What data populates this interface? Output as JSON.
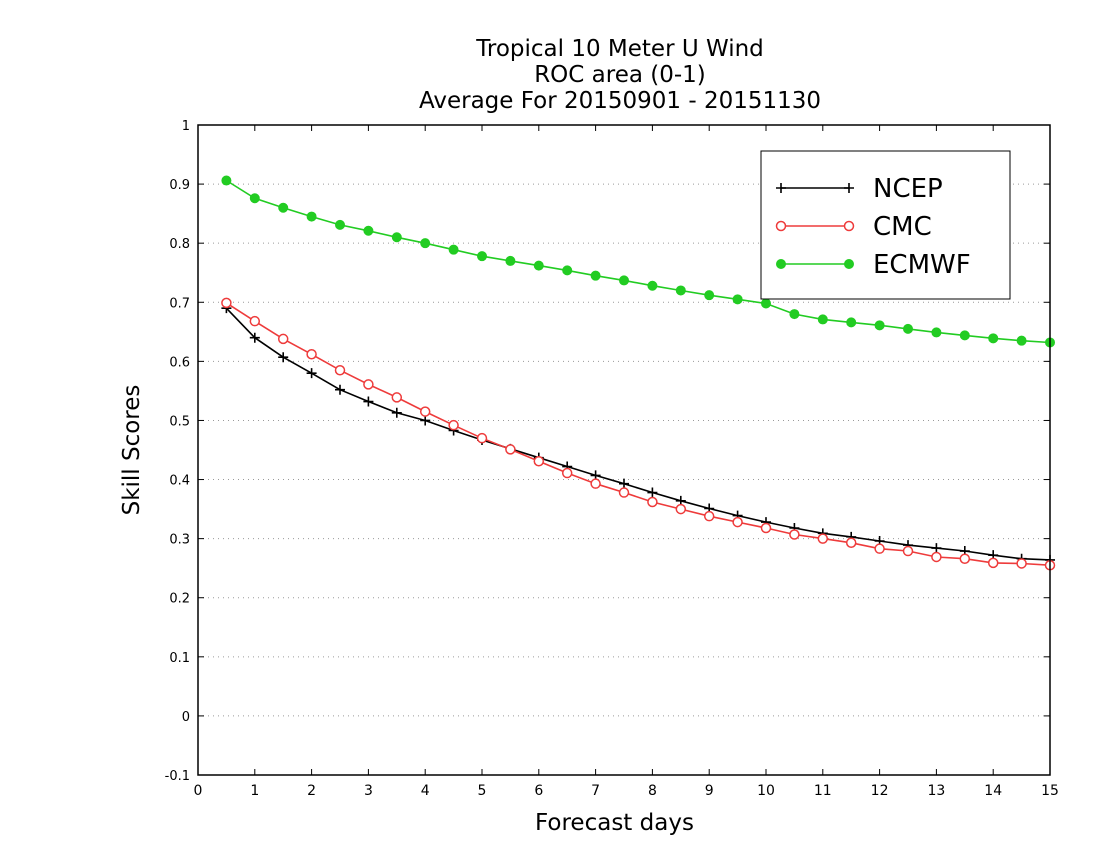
{
  "chart_data": {
    "type": "line",
    "title": [
      "Tropical 10 Meter U Wind",
      "ROC area (0-1)",
      "Average For 20150901 - 20151130"
    ],
    "xlabel": "Forecast days",
    "ylabel": "Skill Scores",
    "xlim": [
      0,
      15
    ],
    "ylim": [
      -0.1,
      1
    ],
    "xticks": [
      0,
      1,
      2,
      3,
      4,
      5,
      6,
      7,
      8,
      9,
      10,
      11,
      12,
      13,
      14,
      15
    ],
    "xtick_labels": [
      "0",
      "1",
      "2",
      "3",
      "4",
      "5",
      "6",
      "7",
      "8",
      "9",
      "10",
      "11",
      "12",
      "13",
      "14",
      "15"
    ],
    "yticks": [
      -0.1,
      0,
      0.1,
      0.2,
      0.3,
      0.4,
      0.5,
      0.6,
      0.7,
      0.8,
      0.9,
      1
    ],
    "ytick_labels": [
      "-0.1",
      "0",
      "0.1",
      "0.2",
      "0.3",
      "0.4",
      "0.5",
      "0.6",
      "0.7",
      "0.8",
      "0.9",
      "1"
    ],
    "grid": "horizontal dotted",
    "legend_position": "top-right",
    "x": [
      0.5,
      1,
      1.5,
      2,
      2.5,
      3,
      3.5,
      4,
      4.5,
      5,
      5.5,
      6,
      6.5,
      7,
      7.5,
      8,
      8.5,
      9,
      9.5,
      10,
      10.5,
      11,
      11.5,
      12,
      12.5,
      13,
      13.5,
      14,
      14.5,
      15
    ],
    "series": [
      {
        "name": "NCEP",
        "color": "#000000",
        "marker": "plus",
        "values": [
          0.69,
          0.64,
          0.607,
          0.58,
          0.552,
          0.532,
          0.513,
          0.5,
          0.483,
          0.467,
          0.452,
          0.437,
          0.422,
          0.407,
          0.393,
          0.378,
          0.364,
          0.351,
          0.339,
          0.328,
          0.318,
          0.309,
          0.303,
          0.296,
          0.289,
          0.284,
          0.279,
          0.272,
          0.266,
          0.264
        ]
      },
      {
        "name": "CMC",
        "color": "#ee3b3b",
        "marker": "open-circle",
        "values": [
          0.699,
          0.668,
          0.638,
          0.612,
          0.585,
          0.561,
          0.539,
          0.515,
          0.492,
          0.47,
          0.451,
          0.431,
          0.411,
          0.393,
          0.378,
          0.362,
          0.35,
          0.338,
          0.328,
          0.318,
          0.307,
          0.3,
          0.293,
          0.283,
          0.279,
          0.269,
          0.266,
          0.259,
          0.258,
          0.255
        ]
      },
      {
        "name": "ECMWF",
        "color": "#22cc22",
        "marker": "filled-circle",
        "values": [
          0.906,
          0.876,
          0.86,
          0.845,
          0.831,
          0.821,
          0.81,
          0.8,
          0.789,
          0.778,
          0.77,
          0.762,
          0.754,
          0.745,
          0.737,
          0.728,
          0.72,
          0.712,
          0.705,
          0.698,
          0.68,
          0.671,
          0.666,
          0.661,
          0.655,
          0.649,
          0.644,
          0.639,
          0.635,
          0.632
        ]
      }
    ]
  }
}
